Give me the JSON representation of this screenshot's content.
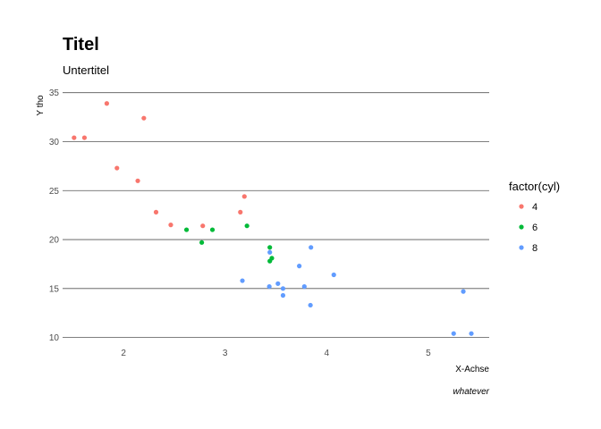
{
  "chart_data": {
    "type": "scatter",
    "title": "Titel",
    "subtitle": "Untertitel",
    "xlabel": "X-Achse",
    "ylabel": "Y tho",
    "caption": "whatever",
    "xlim": [
      1.4,
      5.6
    ],
    "ylim": [
      10,
      35
    ],
    "x_ticks": [
      2,
      3,
      4,
      5
    ],
    "y_ticks": [
      10,
      15,
      20,
      25,
      30,
      35
    ],
    "grid": "horizontal major lines",
    "legend_title": "factor(cyl)",
    "legend_position": "right",
    "series": [
      {
        "name": "4",
        "color": "#F8766D",
        "points": [
          {
            "x": 2.32,
            "y": 22.8
          },
          {
            "x": 3.19,
            "y": 24.4
          },
          {
            "x": 3.15,
            "y": 22.8
          },
          {
            "x": 2.2,
            "y": 32.4
          },
          {
            "x": 1.615,
            "y": 30.4
          },
          {
            "x": 1.835,
            "y": 33.9
          },
          {
            "x": 2.465,
            "y": 21.5
          },
          {
            "x": 1.935,
            "y": 27.3
          },
          {
            "x": 2.14,
            "y": 26.0
          },
          {
            "x": 1.513,
            "y": 30.4
          },
          {
            "x": 2.78,
            "y": 21.4
          }
        ]
      },
      {
        "name": "6",
        "color": "#00BA38",
        "points": [
          {
            "x": 2.62,
            "y": 21.0
          },
          {
            "x": 2.875,
            "y": 21.0
          },
          {
            "x": 3.215,
            "y": 21.4
          },
          {
            "x": 3.46,
            "y": 18.1
          },
          {
            "x": 3.44,
            "y": 19.2
          },
          {
            "x": 3.44,
            "y": 17.8
          },
          {
            "x": 2.77,
            "y": 19.7
          }
        ]
      },
      {
        "name": "8",
        "color": "#619CFF",
        "points": [
          {
            "x": 3.44,
            "y": 18.7
          },
          {
            "x": 3.57,
            "y": 14.3
          },
          {
            "x": 4.07,
            "y": 16.4
          },
          {
            "x": 3.73,
            "y": 17.3
          },
          {
            "x": 3.78,
            "y": 15.2
          },
          {
            "x": 5.25,
            "y": 10.4
          },
          {
            "x": 5.424,
            "y": 10.4
          },
          {
            "x": 5.345,
            "y": 14.7
          },
          {
            "x": 3.52,
            "y": 15.5
          },
          {
            "x": 3.435,
            "y": 15.2
          },
          {
            "x": 3.84,
            "y": 13.3
          },
          {
            "x": 3.845,
            "y": 19.2
          },
          {
            "x": 3.17,
            "y": 15.8
          },
          {
            "x": 3.57,
            "y": 15.0
          }
        ]
      }
    ]
  }
}
